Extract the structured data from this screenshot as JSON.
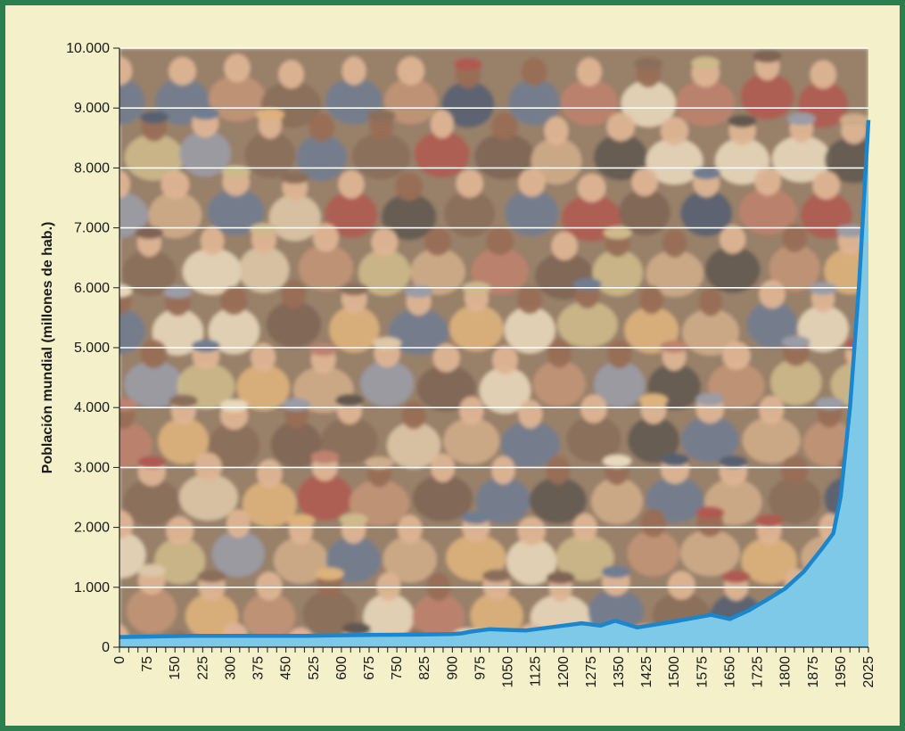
{
  "chart_data": {
    "type": "area",
    "title": "",
    "xlabel": "",
    "ylabel": "Población mundial (millones de hab.)",
    "ylim": [
      0,
      10000
    ],
    "xlim": [
      0,
      2025
    ],
    "grid": true,
    "colors": {
      "frame": "#2e7d4f",
      "background": "#f3f0ca",
      "line": "#1c86cc",
      "fill": "#7ec8e8",
      "gridline": "#ffffff"
    },
    "y_ticks": [
      0,
      1000,
      2000,
      3000,
      4000,
      5000,
      6000,
      7000,
      8000,
      9000,
      10000
    ],
    "y_tick_labels": [
      "0",
      "1.000",
      "2.000",
      "3.000",
      "4.000",
      "5.000",
      "6.000",
      "7.000",
      "8.000",
      "9.000",
      "10.000"
    ],
    "x_ticks": [
      0,
      75,
      150,
      225,
      300,
      375,
      450,
      525,
      600,
      675,
      750,
      825,
      900,
      975,
      1050,
      1125,
      1200,
      1275,
      1350,
      1425,
      1500,
      1575,
      1650,
      1725,
      1800,
      1875,
      1950,
      2025
    ],
    "x_tick_labels": [
      "0",
      "75",
      "150",
      "225",
      "300",
      "375",
      "450",
      "525",
      "600",
      "675",
      "750",
      "825",
      "900",
      "975",
      "1050",
      "1125",
      "1200",
      "1275",
      "1350",
      "1425",
      "1500",
      "1575",
      "1650",
      "1725",
      "1800",
      "1875",
      "1950",
      "2025"
    ],
    "series": [
      {
        "x": [
          0,
          100,
          200,
          300,
          400,
          500,
          600,
          700,
          800,
          900,
          925,
          950,
          975,
          1000,
          1100,
          1200,
          1250,
          1300,
          1340,
          1400,
          1500,
          1600,
          1650,
          1700,
          1750,
          1800,
          1850,
          1900,
          1930,
          1950,
          1975,
          2000,
          2025
        ],
        "y": [
          170,
          180,
          190,
          190,
          190,
          190,
          200,
          207,
          210,
          220,
          230,
          260,
          280,
          300,
          280,
          360,
          400,
          360,
          440,
          330,
          430,
          540,
          470,
          610,
          790,
          980,
          1260,
          1650,
          1900,
          2520,
          4000,
          6080,
          8800
        ]
      }
    ]
  }
}
